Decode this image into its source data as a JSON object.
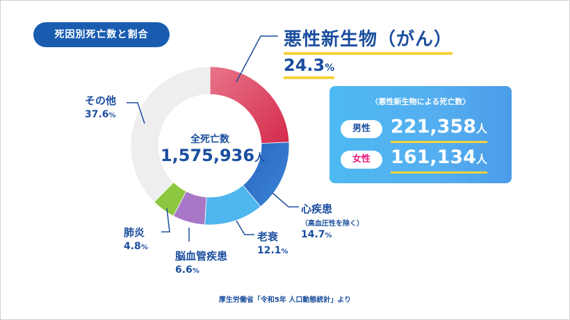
{
  "title_badge": "死因別死亡数と割合",
  "center": {
    "label": "全死亡数",
    "value": "1,575,936",
    "unit": "人"
  },
  "highlight": {
    "name": "悪性新生物（がん）",
    "pct": "24.3",
    "pct_unit": "%"
  },
  "labels": {
    "heart": {
      "name": "心疾患",
      "sub": "（高血圧性を除く）",
      "pct": "14.7",
      "unit": "%"
    },
    "senility": {
      "name": "老衰",
      "pct": "12.1",
      "unit": "%"
    },
    "cerebro": {
      "name": "脳血管疾患",
      "pct": "6.6",
      "unit": "%"
    },
    "pneumonia": {
      "name": "肺炎",
      "pct": "4.8",
      "unit": "%"
    },
    "other": {
      "name": "その他",
      "pct": "37.6",
      "unit": "%"
    }
  },
  "card": {
    "title": "〈悪性新生物による死亡数〉",
    "male_label": "男性",
    "male_value": "221,358",
    "female_label": "女性",
    "female_value": "161,134",
    "unit": "人"
  },
  "source": "厚生労働省「令和5年 人口動態統計」より",
  "colors": {
    "primary": "#1a4e9e",
    "badge": "#1a5db0",
    "underline": "#f5d33a",
    "male": "#1a4e9e",
    "female": "#e6177a"
  },
  "chart_data": {
    "type": "pie",
    "title": "死因別死亡数と割合",
    "total_deaths": 1575936,
    "slices": [
      {
        "label": "悪性新生物（がん）",
        "value": 24.3,
        "color": "#d93a5a",
        "color_light": "#e8758a"
      },
      {
        "label": "心疾患",
        "value": 14.7,
        "color": "#2f6fc4",
        "color_light": "#2f6fc4"
      },
      {
        "label": "老衰",
        "value": 12.1,
        "color": "#4fb6ee",
        "color_light": "#4fb6ee"
      },
      {
        "label": "脳血管疾患",
        "value": 6.6,
        "color": "#a877c6",
        "color_light": "#a877c6"
      },
      {
        "label": "肺炎",
        "value": 4.8,
        "color": "#8dc63f",
        "color_light": "#8dc63f"
      },
      {
        "label": "その他",
        "value": 37.6,
        "color": "#eeeeee",
        "color_light": "#eeeeee"
      }
    ]
  }
}
